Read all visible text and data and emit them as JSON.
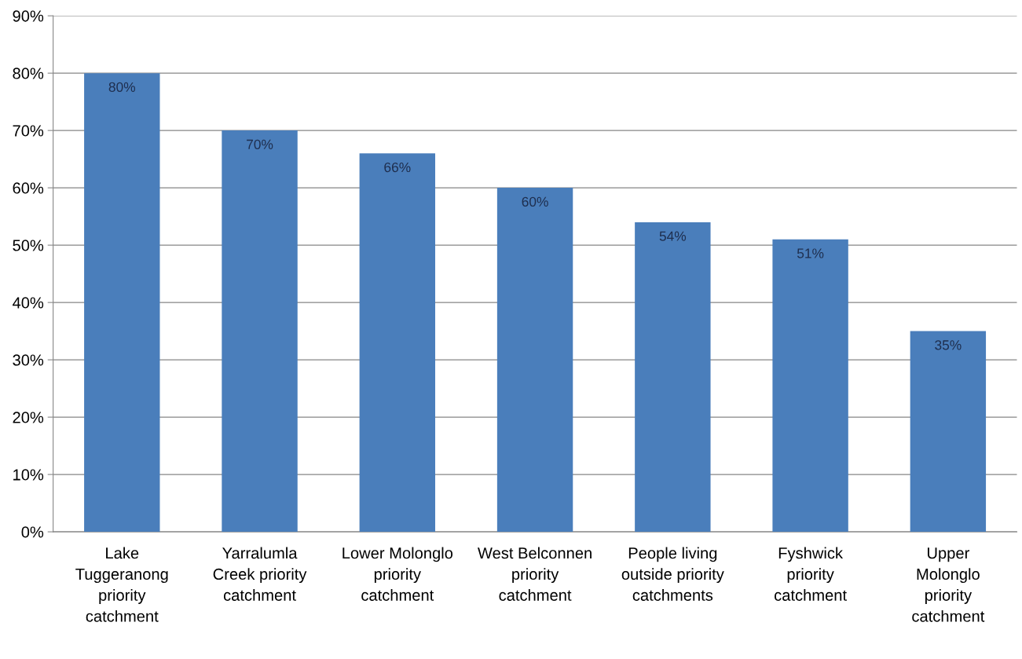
{
  "chart_data": {
    "type": "bar",
    "categories": [
      "Lake\nTuggeranong\npriority\ncatchment",
      "Yarralumla\nCreek priority\ncatchment",
      "Lower Molonglo\npriority\ncatchment",
      "West Belconnen\npriority\ncatchment",
      "People living\noutside priority\ncatchments",
      "Fyshwick\npriority\ncatchment",
      "Upper\nMolonglo\npriority\ncatchment"
    ],
    "values": [
      80,
      70,
      66,
      60,
      54,
      51,
      35
    ],
    "value_labels": [
      "80%",
      "70%",
      "66%",
      "60%",
      "54%",
      "51%",
      "35%"
    ],
    "color": "#4a7ebb",
    "ylim": [
      0,
      90
    ],
    "yticks": [
      {
        "value": 0,
        "label": "0%"
      },
      {
        "value": 10,
        "label": "10%"
      },
      {
        "value": 20,
        "label": "20%"
      },
      {
        "value": 30,
        "label": "30%"
      },
      {
        "value": 40,
        "label": "40%"
      },
      {
        "value": 50,
        "label": "50%"
      },
      {
        "value": 60,
        "label": "60%"
      },
      {
        "value": 70,
        "label": "70%"
      },
      {
        "value": 80,
        "label": "80%"
      },
      {
        "value": 90,
        "label": "90%"
      }
    ],
    "grid": "y"
  }
}
